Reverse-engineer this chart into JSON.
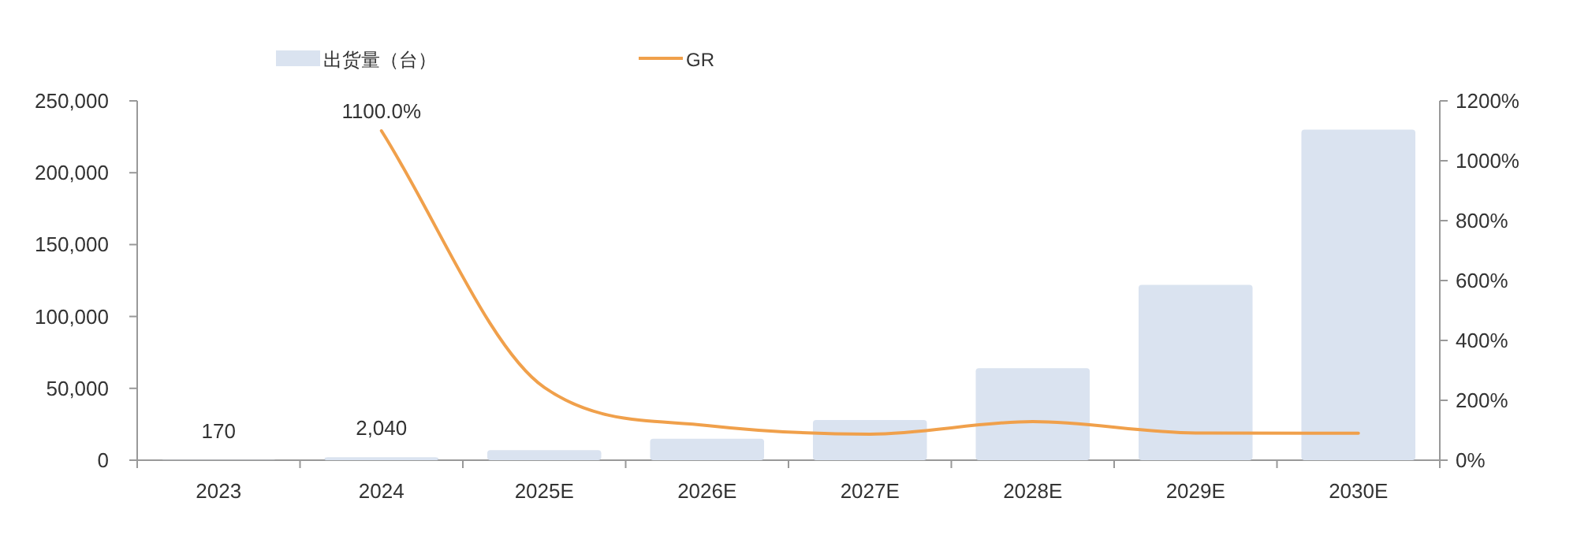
{
  "chart_data": {
    "type": "bar",
    "categories": [
      "2023",
      "2024",
      "2025E",
      "2026E",
      "2027E",
      "2028E",
      "2029E",
      "2030E"
    ],
    "series": [
      {
        "name": "出货量（台）",
        "color": "#dae3f0",
        "values": [
          170,
          2040,
          7000,
          15000,
          28000,
          64000,
          122000,
          230000
        ],
        "value_labels": [
          "170",
          "2,040",
          null,
          null,
          null,
          null,
          null,
          null
        ]
      },
      {
        "name": "GR",
        "type": "line",
        "axis": "y2",
        "color": "#f0a04b",
        "values": [
          null,
          1100,
          243,
          116,
          87,
          129,
          91,
          90
        ],
        "value_labels": [
          null,
          "1100.0%",
          null,
          null,
          null,
          null,
          null,
          null
        ]
      }
    ],
    "ylim": [
      0,
      250000
    ],
    "yticks": [
      {
        "value": 0,
        "label": "0"
      },
      {
        "value": 50000,
        "label": "50,000"
      },
      {
        "value": 100000,
        "label": "100,000"
      },
      {
        "value": 150000,
        "label": "150,000"
      },
      {
        "value": 200000,
        "label": "200,000"
      },
      {
        "value": 250000,
        "label": "250,000"
      }
    ],
    "y2lim": [
      0,
      1200
    ],
    "y2ticks": [
      {
        "value": 0,
        "label": "0%"
      },
      {
        "value": 200,
        "label": "200%"
      },
      {
        "value": 400,
        "label": "400%"
      },
      {
        "value": 600,
        "label": "600%"
      },
      {
        "value": 800,
        "label": "800%"
      },
      {
        "value": 1000,
        "label": "1000%"
      },
      {
        "value": 1200,
        "label": "1200%"
      }
    ],
    "grid": false,
    "legend": "top",
    "marker": "none",
    "line_style": "solid"
  }
}
